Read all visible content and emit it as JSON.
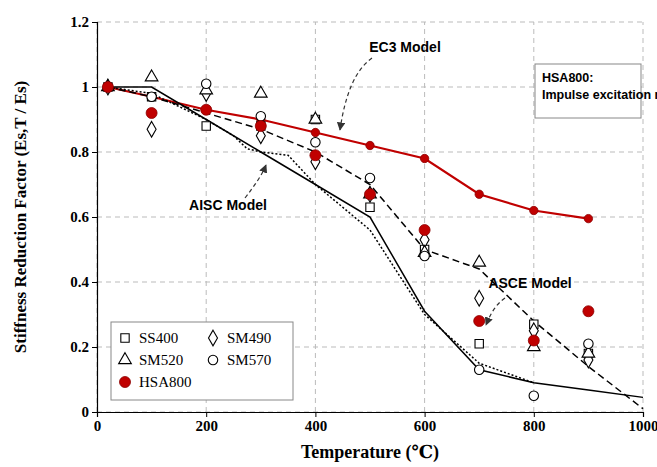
{
  "chart_data": {
    "type": "scatter",
    "x_label": "Temperature (℃)",
    "y_label": "Stiffness Reduction Factor (Es,T / Es)",
    "xlim": [
      0,
      1000
    ],
    "xticks": [
      0,
      200,
      400,
      600,
      800,
      1000
    ],
    "ylim": [
      0,
      1.2
    ],
    "yticks": [
      0,
      0.2,
      0.4,
      0.6,
      0.8,
      1,
      1.2
    ],
    "grid": true,
    "legend": "lower left",
    "series": [
      {
        "name": "SS400",
        "type": "scatter",
        "marker": "square-open",
        "color": "#000000",
        "x": [
          20,
          100,
          200,
          300,
          400,
          500,
          600,
          700,
          800,
          900
        ],
        "values": [
          1.0,
          0.97,
          0.88,
          0.88,
          0.9,
          0.63,
          0.5,
          0.21,
          0.27,
          0.18
        ]
      },
      {
        "name": "SM490",
        "type": "scatter",
        "marker": "diamond-open",
        "color": "#000000",
        "x": [
          20,
          100,
          200,
          300,
          400,
          500,
          600,
          700,
          800,
          900
        ],
        "values": [
          1.0,
          0.87,
          0.98,
          0.85,
          0.77,
          0.67,
          0.53,
          0.35,
          0.25,
          0.16
        ]
      },
      {
        "name": "SM520",
        "type": "scatter",
        "marker": "triangle-open",
        "color": "#000000",
        "x": [
          20,
          100,
          200,
          300,
          400,
          500,
          600,
          700,
          800,
          900
        ],
        "values": [
          1.0,
          1.03,
          0.99,
          0.98,
          0.9,
          0.67,
          0.49,
          0.46,
          0.2,
          0.18
        ]
      },
      {
        "name": "SM570",
        "type": "scatter",
        "marker": "circle-open",
        "color": "#000000",
        "x": [
          20,
          100,
          200,
          300,
          400,
          500,
          600,
          700,
          800,
          900
        ],
        "values": [
          1.0,
          0.97,
          1.01,
          0.91,
          0.83,
          0.72,
          0.48,
          0.13,
          0.05,
          0.21
        ]
      },
      {
        "name": "HSA800",
        "type": "scatter",
        "marker": "circle",
        "color": "#c00000",
        "x": [
          20,
          100,
          200,
          300,
          400,
          500,
          600,
          700,
          800,
          900
        ],
        "values": [
          1.0,
          0.92,
          0.93,
          0.88,
          0.79,
          0.67,
          0.56,
          0.28,
          0.22,
          0.31
        ]
      },
      {
        "type": "line",
        "marker": "circle",
        "line_style": "solid",
        "color": "#c00000",
        "x": [
          20,
          100,
          200,
          300,
          400,
          500,
          600,
          700,
          800,
          900
        ],
        "values": [
          1.0,
          0.97,
          0.93,
          0.9,
          0.86,
          0.82,
          0.78,
          0.67,
          0.62,
          0.595
        ]
      },
      {
        "type": "line",
        "line_style": "solid",
        "color": "#000000",
        "x": [
          20,
          100,
          200,
          300,
          400,
          500,
          600,
          700,
          800,
          900,
          1000
        ],
        "values": [
          1.0,
          1.0,
          0.9,
          0.8,
          0.7,
          0.6,
          0.31,
          0.13,
          0.09,
          0.0675,
          0.045
        ]
      },
      {
        "type": "line",
        "line_style": "dotted",
        "color": "#000000",
        "x": [
          20,
          100,
          200,
          250,
          275,
          300,
          350,
          400,
          500,
          600,
          700,
          800
        ],
        "values": [
          1.0,
          0.98,
          0.9,
          0.85,
          0.81,
          0.8,
          0.79,
          0.7,
          0.56,
          0.3,
          0.15,
          0.09
        ]
      },
      {
        "type": "line",
        "line_style": "dashed",
        "color": "#000000",
        "x": [
          20,
          100,
          200,
          300,
          400,
          500,
          600,
          700,
          800,
          900,
          1000
        ],
        "values": [
          1.0,
          0.97,
          0.92,
          0.87,
          0.8,
          0.7,
          0.5,
          0.44,
          0.28,
          0.14,
          0.01
        ]
      }
    ],
    "annotations": [
      {
        "text": "EC3 Model"
      },
      {
        "text": "AISC Model"
      },
      {
        "text": "ASCE Model"
      },
      {
        "text": [
          "HSA800:",
          "Impulse excitation method"
        ]
      }
    ]
  }
}
